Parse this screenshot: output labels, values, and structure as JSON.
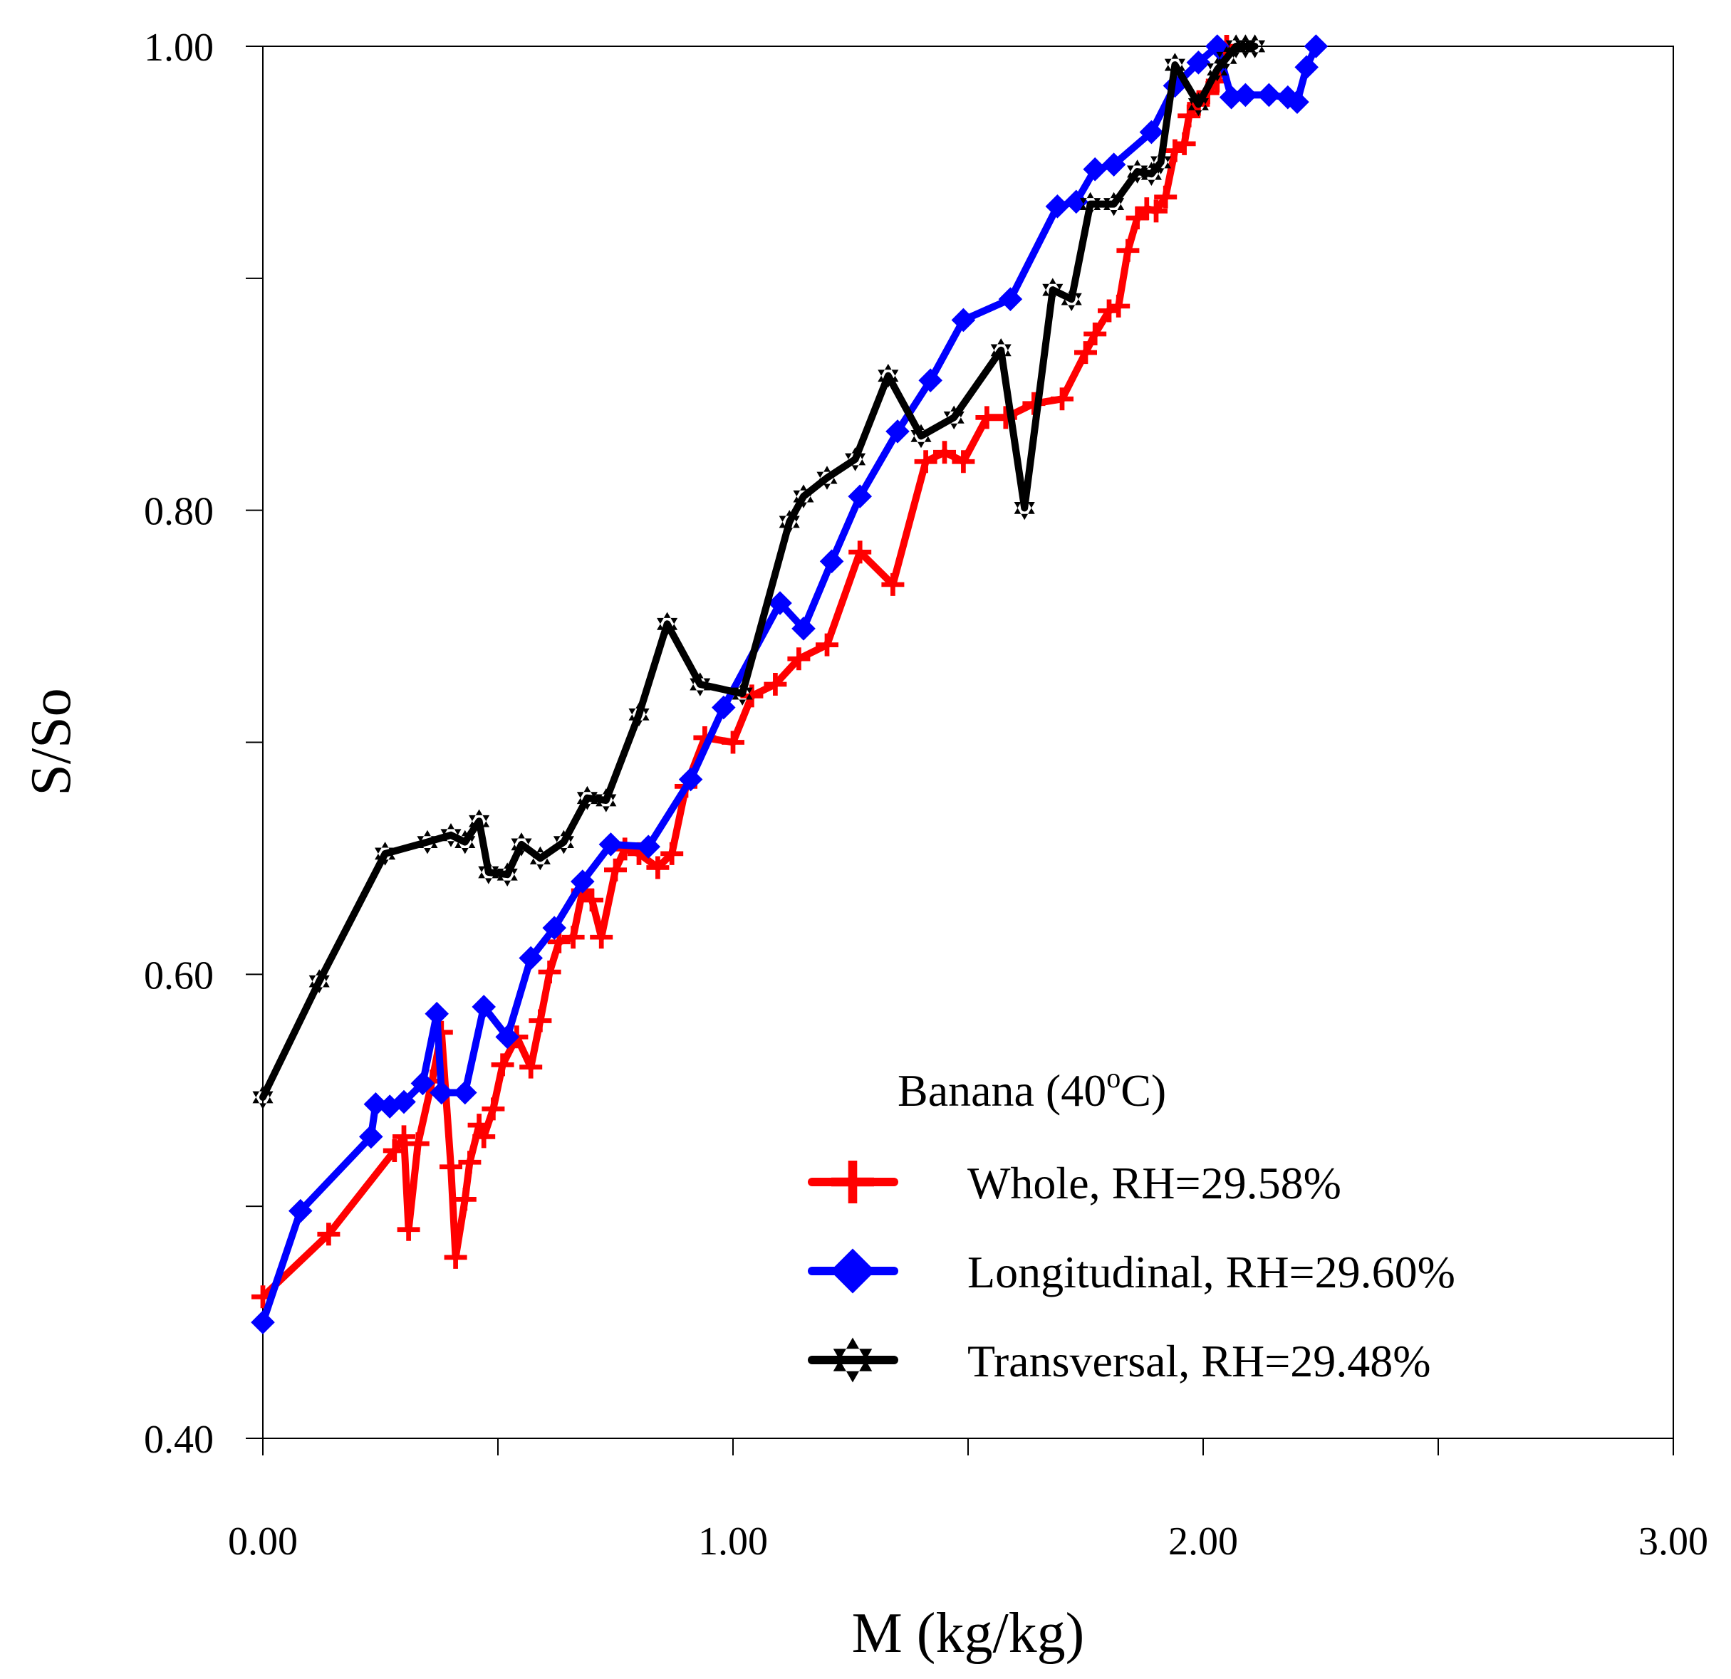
{
  "chart_data": {
    "type": "line",
    "title": "",
    "xlabel": "M (kg/kg)",
    "ylabel": "S/So",
    "xlim": [
      0,
      3
    ],
    "ylim": [
      0.4,
      1.0
    ],
    "x_ticks": [
      "0.00",
      "1.00",
      "2.00",
      "3.00"
    ],
    "y_ticks": [
      "0.40",
      "0.60",
      "0.80",
      "1.00"
    ],
    "grid": false,
    "legend_title_parts": [
      "Banana (40",
      "o",
      "C)"
    ],
    "legend_position": "bottom-right",
    "series": [
      {
        "name": "Whole, RH=29.58%",
        "color": "#ff0000",
        "marker": "plus",
        "x": [
          0.0,
          0.14,
          0.28,
          0.3,
          0.31,
          0.33,
          0.36,
          0.38,
          0.4,
          0.41,
          0.43,
          0.44,
          0.46,
          0.47,
          0.49,
          0.51,
          0.54,
          0.57,
          0.59,
          0.61,
          0.63,
          0.66,
          0.68,
          0.7,
          0.72,
          0.75,
          0.77,
          0.8,
          0.84,
          0.87,
          0.9,
          0.94,
          1.0,
          1.04,
          1.09,
          1.14,
          1.2,
          1.27,
          1.34,
          1.41,
          1.45,
          1.49,
          1.54,
          1.58,
          1.64,
          1.7,
          1.75,
          1.77,
          1.8,
          1.82,
          1.84,
          1.86,
          1.88,
          1.9,
          1.92,
          1.94,
          1.96,
          1.97,
          1.99,
          2.01,
          2.03,
          2.05
        ],
        "y": [
          0.461,
          0.488,
          0.524,
          0.53,
          0.49,
          0.527,
          0.554,
          0.575,
          0.517,
          0.478,
          0.503,
          0.519,
          0.535,
          0.53,
          0.542,
          0.561,
          0.573,
          0.56,
          0.58,
          0.601,
          0.614,
          0.616,
          0.636,
          0.632,
          0.616,
          0.645,
          0.654,
          0.652,
          0.646,
          0.652,
          0.681,
          0.702,
          0.7,
          0.72,
          0.725,
          0.736,
          0.742,
          0.782,
          0.768,
          0.821,
          0.825,
          0.821,
          0.84,
          0.84,
          0.846,
          0.848,
          0.868,
          0.876,
          0.886,
          0.888,
          0.912,
          0.926,
          0.93,
          0.929,
          0.935,
          0.955,
          0.958,
          0.97,
          0.975,
          0.98,
          0.985,
          1.0
        ]
      },
      {
        "name": "Longitudinal, RH=29.60%",
        "color": "#0000ff",
        "marker": "diamond",
        "x": [
          0.0,
          0.08,
          0.23,
          0.24,
          0.27,
          0.3,
          0.34,
          0.37,
          0.38,
          0.43,
          0.47,
          0.52,
          0.57,
          0.62,
          0.68,
          0.74,
          0.82,
          0.91,
          0.98,
          1.1,
          1.15,
          1.21,
          1.27,
          1.35,
          1.42,
          1.49,
          1.59,
          1.69,
          1.73,
          1.77,
          1.81,
          1.89,
          1.94,
          1.99,
          2.03,
          2.06,
          2.09,
          2.14,
          2.18,
          2.2,
          2.22,
          2.24
        ],
        "y": [
          0.45,
          0.498,
          0.53,
          0.544,
          0.543,
          0.545,
          0.553,
          0.583,
          0.549,
          0.549,
          0.586,
          0.573,
          0.607,
          0.62,
          0.64,
          0.656,
          0.655,
          0.684,
          0.715,
          0.76,
          0.749,
          0.778,
          0.806,
          0.834,
          0.856,
          0.882,
          0.891,
          0.931,
          0.933,
          0.947,
          0.949,
          0.963,
          0.983,
          0.993,
          1.0,
          0.978,
          0.979,
          0.979,
          0.978,
          0.976,
          0.991,
          1.0
        ]
      },
      {
        "name": "Transversal, RH=29.48%",
        "color": "#000000",
        "marker": "star",
        "x": [
          0.0,
          0.12,
          0.26,
          0.35,
          0.4,
          0.43,
          0.46,
          0.48,
          0.52,
          0.55,
          0.59,
          0.64,
          0.69,
          0.73,
          0.8,
          0.86,
          0.93,
          1.02,
          1.12,
          1.15,
          1.2,
          1.26,
          1.33,
          1.4,
          1.47,
          1.57,
          1.62,
          1.68,
          1.72,
          1.76,
          1.81,
          1.86,
          1.89,
          1.91,
          1.94,
          1.99,
          2.03,
          2.05,
          2.07,
          2.09,
          2.11
        ],
        "y": [
          0.547,
          0.597,
          0.652,
          0.657,
          0.66,
          0.657,
          0.666,
          0.644,
          0.643,
          0.656,
          0.65,
          0.657,
          0.676,
          0.675,
          0.712,
          0.751,
          0.725,
          0.721,
          0.795,
          0.806,
          0.814,
          0.822,
          0.858,
          0.832,
          0.84,
          0.869,
          0.801,
          0.895,
          0.891,
          0.932,
          0.932,
          0.946,
          0.945,
          0.95,
          0.992,
          0.975,
          0.99,
          0.995,
          1.0,
          1.0,
          1.0
        ]
      }
    ]
  }
}
